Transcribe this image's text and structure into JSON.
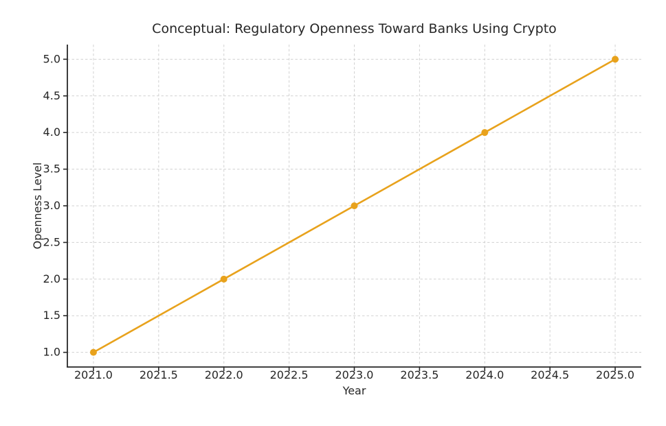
{
  "chart_data": {
    "type": "line",
    "title": "Conceptual: Regulatory Openness Toward Banks Using Crypto",
    "xlabel": "Year",
    "ylabel": "Openness Level",
    "x": [
      2021,
      2022,
      2023,
      2024,
      2025
    ],
    "y": [
      1,
      2,
      3,
      4,
      5
    ],
    "series": [
      {
        "name": "Openness Level",
        "values": [
          1,
          2,
          3,
          4,
          5
        ]
      }
    ],
    "xlim": [
      2020.8,
      2025.2
    ],
    "ylim": [
      0.8,
      5.2
    ],
    "xticks": [
      2021.0,
      2021.5,
      2022.0,
      2022.5,
      2023.0,
      2023.5,
      2024.0,
      2024.5,
      2025.0
    ],
    "xtick_labels": [
      "2021.0",
      "2021.5",
      "2022.0",
      "2022.5",
      "2023.0",
      "2023.5",
      "2024.0",
      "2024.5",
      "2025.0"
    ],
    "yticks": [
      1.0,
      1.5,
      2.0,
      2.5,
      3.0,
      3.5,
      4.0,
      4.5,
      5.0
    ],
    "ytick_labels": [
      "1.0",
      "1.5",
      "2.0",
      "2.5",
      "3.0",
      "3.5",
      "4.0",
      "4.5",
      "5.0"
    ],
    "grid": true,
    "grid_style": "dashed",
    "legend_position": "none",
    "marker": "circle",
    "colors": {
      "line": "#E8A21C",
      "marker": "#E8A21C",
      "text": "#262626",
      "spine": "#262626",
      "grid": "#cccccc",
      "background": "#ffffff"
    }
  }
}
